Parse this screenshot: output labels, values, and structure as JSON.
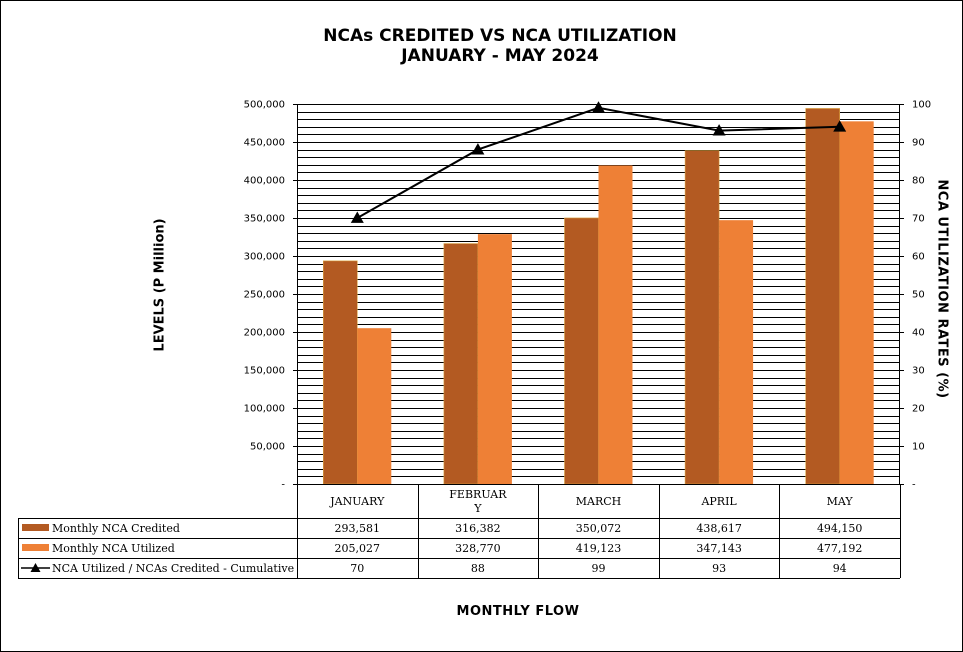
{
  "title": [
    "NCAs CREDITED VS NCA UTILIZATION",
    "JANUARY - MAY 2024"
  ],
  "colors": {
    "credited": "#B35A22",
    "utilized": "#EE8036",
    "ratio": "#000000",
    "grid": "#000000"
  },
  "chart_data": {
    "type": "bar",
    "categories": [
      "JANUARY",
      "FEBRUAR\nY",
      "MARCH",
      "APRIL",
      "MAY"
    ],
    "series": [
      {
        "name": "Monthly NCA Credited",
        "values": [
          293581,
          316382,
          350072,
          438617,
          494150
        ],
        "labels": [
          "293,581",
          "316,382",
          "350,072",
          "438,617",
          "494,150"
        ],
        "axis": "left",
        "kind": "bar"
      },
      {
        "name": "Monthly NCA Utilized",
        "values": [
          205027,
          328770,
          419123,
          347143,
          477192
        ],
        "labels": [
          "205,027",
          "328,770",
          "419,123",
          "347,143",
          "477,192"
        ],
        "axis": "left",
        "kind": "bar"
      },
      {
        "name": "NCA Utilized / NCAs Credited - Cumulative",
        "values": [
          70,
          88,
          99,
          93,
          94
        ],
        "labels": [
          "70",
          "88",
          "99",
          "93",
          "94"
        ],
        "axis": "right",
        "kind": "line",
        "marker": "triangle"
      }
    ],
    "ylabel": "LEVELS (P Million)",
    "y2label": "NCA UTILIZATION RATES (%)",
    "xlabel": "MONTHLY FLOW",
    "ylim": [
      0,
      500000
    ],
    "y2lim": [
      0,
      100
    ],
    "yticks": [
      "-",
      "50,000",
      "100,000",
      "150,000",
      "200,000",
      "250,000",
      "300,000",
      "350,000",
      "400,000",
      "450,000",
      "500,000"
    ],
    "y2ticks": [
      "-",
      "10",
      "20",
      "30",
      "40",
      "50",
      "60",
      "70",
      "80",
      "90",
      "100"
    ],
    "grid": true,
    "legend": "data-table"
  }
}
